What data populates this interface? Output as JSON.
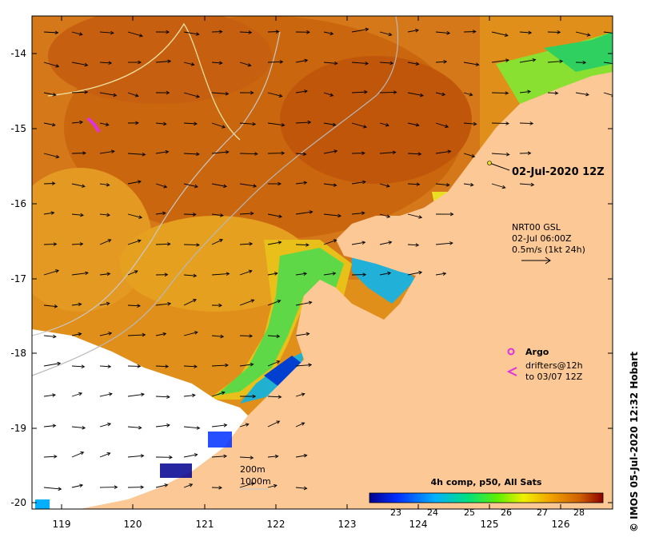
{
  "map": {
    "y_axis_labels": [
      "-14",
      "-15",
      "-16",
      "-17",
      "-18",
      "-19",
      "-20"
    ],
    "x_axis_labels": [
      "119",
      "120",
      "121",
      "122",
      "123",
      "124",
      "125",
      "126"
    ],
    "timestamp_label": "02-Jul-2020 12Z",
    "current_info": {
      "line1": "NRT00 GSL",
      "line2": "02-Jul 06:00Z",
      "line3": "0.5m/s (1kt 24h)"
    },
    "argo_legend": "Argo",
    "drifters_line1": "drifters@12h",
    "drifters_line2": "to 03/07 12Z",
    "contour_200": "200m",
    "contour_1000": "1000m",
    "colorbar": {
      "title": "4h comp, p50, All Sats",
      "ticks": [
        "23",
        "24",
        "25",
        "26",
        "27",
        "28"
      ]
    },
    "credit": "© IMOS 05-Jul-2020 12:32 Hobart",
    "colors": {
      "land": "#fbc896",
      "no_data": "#ffffff",
      "warm": "#c45a0a",
      "argo": "#e030e0"
    }
  }
}
